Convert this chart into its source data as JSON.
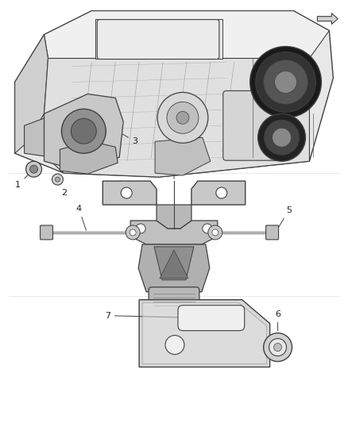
{
  "bg_color": "#ffffff",
  "fig_width": 4.38,
  "fig_height": 5.33,
  "dpi": 100,
  "lc": "#404040",
  "lc_thin": "#606060",
  "gray_dark": "#555555",
  "gray_mid": "#888888",
  "gray_light": "#bbbbbb",
  "gray_vlight": "#dddddd",
  "gray_engine": "#c8c8c8",
  "white": "#ffffff",
  "section1_yrange": [
    0.595,
    1.0
  ],
  "section2_yrange": [
    0.3,
    0.595
  ],
  "section3_yrange": [
    0.0,
    0.3
  ]
}
